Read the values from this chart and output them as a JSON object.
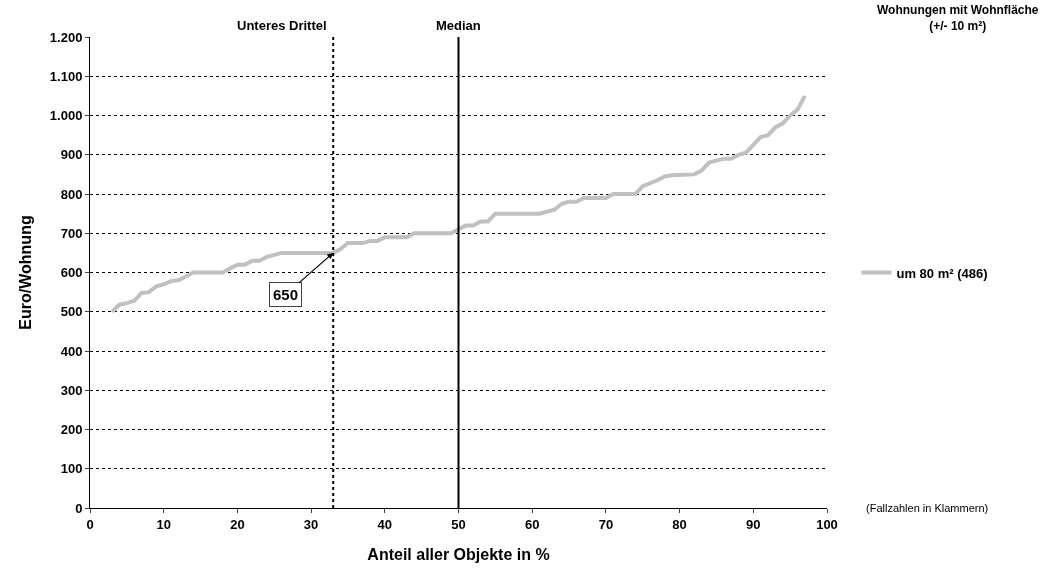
{
  "chart_data": {
    "type": "line",
    "xlabel": "Anteil aller Objekte in %",
    "ylabel": "Euro/Wohnung",
    "legend_title": "Wohnungen mit Wohnfläche (+/- 10 m²)",
    "x": [
      3,
      4,
      5,
      6,
      7,
      8,
      9,
      10,
      11,
      12,
      13,
      14,
      18,
      19,
      20,
      21,
      22,
      23,
      24,
      25,
      26,
      33,
      34,
      35,
      37,
      38,
      39,
      40,
      43,
      44,
      49,
      50,
      51,
      52,
      53,
      54,
      55,
      61,
      63,
      64,
      65,
      66,
      67,
      70,
      71,
      74,
      75,
      77,
      78,
      79,
      82,
      83,
      84,
      86,
      87,
      88,
      89,
      90,
      91,
      92,
      93,
      94,
      95,
      96,
      97
    ],
    "series": [
      {
        "name": "um 80 m² (486)",
        "color": "#c0c0c0",
        "values": [
          500,
          518,
          522,
          528,
          548,
          550,
          565,
          570,
          578,
          580,
          590,
          600,
          600,
          610,
          620,
          620,
          630,
          630,
          640,
          645,
          650,
          650,
          660,
          675,
          675,
          680,
          680,
          690,
          690,
          700,
          700,
          710,
          720,
          720,
          730,
          730,
          750,
          750,
          760,
          775,
          780,
          780,
          790,
          790,
          800,
          800,
          820,
          835,
          845,
          848,
          850,
          860,
          880,
          890,
          890,
          900,
          905,
          925,
          945,
          950,
          970,
          980,
          1000,
          1015,
          1050
        ]
      }
    ],
    "xlim": [
      0,
      100
    ],
    "xticks": [
      0,
      10,
      20,
      30,
      40,
      50,
      60,
      70,
      80,
      90,
      100
    ],
    "ylim": [
      0,
      1200
    ],
    "yticks": [
      0,
      100,
      200,
      300,
      400,
      500,
      600,
      700,
      800,
      900,
      {
        "value": 1000,
        "label": "1.000"
      },
      {
        "value": 1100,
        "label": "1.100"
      },
      {
        "value": 1200,
        "label": "1.200"
      }
    ],
    "grid": "y",
    "legend": "right",
    "marker": "none",
    "line_style": "solid",
    "ref_lines": [
      {
        "axis": "x",
        "value": 33,
        "label": "Unteres Drittel",
        "color": "#000000",
        "line_style": "dotted"
      },
      {
        "axis": "x",
        "value": 50,
        "label": "Median",
        "color": "#000000",
        "line_style": "solid"
      }
    ],
    "annotations": [
      {
        "text": "650",
        "x": 33,
        "y": 650
      },
      "(Fallzahlen in Klammern)"
    ]
  }
}
